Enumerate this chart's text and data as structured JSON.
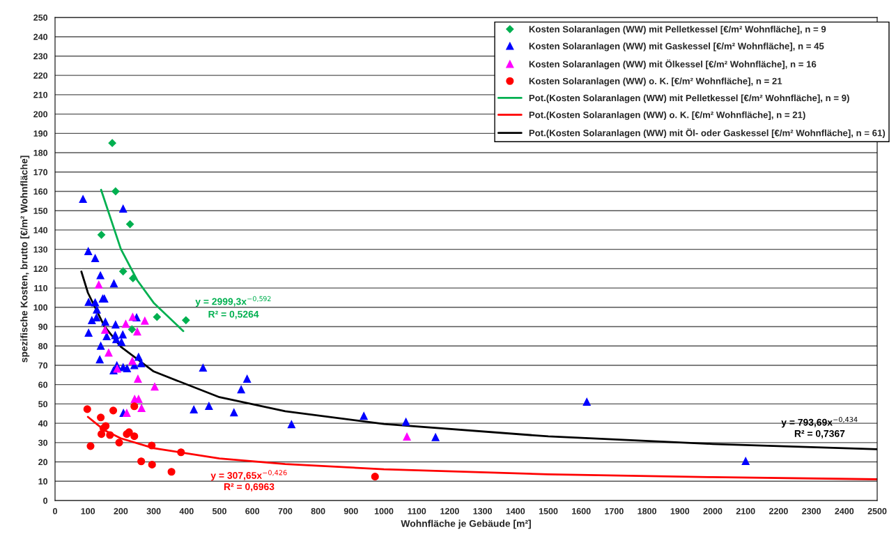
{
  "chart_data": {
    "type": "scatter",
    "xlabel": "Wohnfläche je Gebäude [m²]",
    "ylabel": "spezifische Kosten, brutto [€/m² Wohnfläche]",
    "xlim": [
      0,
      2500
    ],
    "ylim": [
      0,
      250
    ],
    "xticks": [
      0,
      100,
      200,
      300,
      400,
      500,
      600,
      700,
      800,
      900,
      1000,
      1100,
      1200,
      1300,
      1400,
      1500,
      1600,
      1700,
      1800,
      1900,
      2000,
      2100,
      2200,
      2300,
      2400,
      2500
    ],
    "yticks": [
      0,
      10,
      20,
      30,
      40,
      50,
      60,
      70,
      80,
      90,
      100,
      110,
      120,
      130,
      140,
      150,
      160,
      170,
      180,
      190,
      200,
      210,
      220,
      230,
      240,
      250
    ],
    "grid": "y",
    "legend": "top right",
    "series": [
      {
        "type": "scatter",
        "marker": "diamond",
        "name": "Kosten Solaranlagen (WW) mit Pelletkessel [€/m² Wohnfläche], n = 9",
        "color": "#00b050",
        "x": [
          174,
          184,
          228,
          141,
          207,
          237,
          310,
          398,
          234
        ],
        "values": [
          185,
          160,
          143,
          137.5,
          118.6,
          115,
          95,
          93.3,
          88.6
        ]
      },
      {
        "type": "scatter",
        "marker": "triangle",
        "name": "Kosten Solaranlagen (WW) mit Gaskessel [€/m² Wohnfläche], n = 45",
        "color": "#0000ff",
        "x": [
          85,
          207,
          101,
          122,
          138,
          179,
          102,
          122,
          145,
          150,
          127,
          112,
          126,
          153,
          248,
          102,
          184,
          157,
          183,
          206,
          186,
          202,
          139,
          136,
          254,
          262,
          241,
          178,
          188,
          207,
          219,
          450,
          208,
          422,
          468,
          544,
          566,
          584,
          719,
          939,
          1067,
          1157,
          1617,
          2100
        ],
        "values": [
          156,
          151,
          129,
          125.4,
          116.5,
          112.3,
          102.7,
          102.5,
          104.5,
          104.5,
          98.8,
          93.3,
          94.7,
          92.5,
          94.7,
          86.8,
          91,
          85,
          85.5,
          85.9,
          83.4,
          82,
          80,
          73,
          74.3,
          71,
          70,
          67.3,
          69.9,
          68.9,
          68.4,
          68.7,
          45.3,
          47.1,
          48.9,
          45.6,
          57.5,
          63,
          39.4,
          43.8,
          40.7,
          32.8,
          51.1,
          20.4
        ]
      },
      {
        "type": "scatter",
        "marker": "triangle",
        "name": "Kosten Solaranlagen (WW) mit Ölkessel [€/m² Wohnfläche], n = 16",
        "color": "#ff00ff",
        "x": [
          133,
          236,
          215,
          273,
          250,
          152,
          163,
          235,
          189,
          252,
          303,
          242,
          254,
          263,
          218,
          1070
        ],
        "values": [
          111.7,
          95,
          91.4,
          93,
          87.4,
          88.3,
          76.5,
          72.3,
          68.2,
          63,
          58.9,
          52.5,
          52.5,
          47.8,
          45.3,
          33
        ]
      },
      {
        "type": "scatter",
        "marker": "circle",
        "name": "Kosten Solaranlagen (WW) o. K. [€/m² Wohnfläche], n = 21",
        "color": "#ff0000",
        "x": [
          98,
          177,
          241,
          139,
          154,
          147,
          141,
          167,
          218,
          225,
          241,
          108,
          195,
          294,
          383,
          262,
          295,
          354,
          973
        ],
        "values": [
          47.3,
          46.6,
          48.8,
          43,
          38.6,
          37.4,
          34.4,
          33.9,
          34.4,
          35.4,
          33.3,
          28.2,
          30,
          28.5,
          25,
          20.3,
          18.6,
          14.9,
          12.4
        ]
      },
      {
        "type": "line",
        "marker": "none",
        "name": "Pot.(Kosten Solaranlagen (WW) mit Pelletkessel [€/m² Wohnfläche], n = 9)",
        "color": "#00b050",
        "x": [
          140,
          200,
          250,
          300,
          390
        ],
        "values": [
          160.8,
          130.2,
          114,
          102.3,
          87.7
        ]
      },
      {
        "type": "line",
        "marker": "none",
        "name": "Pot.(Kosten Solaranlagen (WW) o. K. [€/m² Wohnfläche], n = 21)",
        "color": "#ff0000",
        "x": [
          100,
          150,
          200,
          300,
          500,
          700,
          1000,
          1500,
          2000,
          2500
        ],
        "values": [
          43.3,
          36.4,
          32.2,
          27.1,
          21.8,
          18.9,
          16.2,
          13.6,
          12.1,
          11.0
        ]
      },
      {
        "type": "line",
        "marker": "none",
        "name": "Pot.(Kosten Solaranlagen (WW) mit Öl- oder Gaskessel [€/m² Wohnfläche], n = 61)",
        "color": "#000000",
        "x": [
          80,
          100,
          150,
          200,
          300,
          500,
          700,
          1000,
          1500,
          2000,
          2500
        ],
        "values": [
          118.5,
          107.5,
          90.2,
          79.6,
          66.8,
          53.5,
          46.2,
          39.6,
          33.2,
          29.3,
          26.6
        ]
      }
    ],
    "annotations": [
      "y = 2999,3x$^{−0,592}$",
      "R² = 0,5264",
      "y = 307,65x$^{−0,426}$",
      "R² = 0,6963",
      "y = 793,69x$^{−0,434}$",
      "R² = 0,7367"
    ]
  }
}
